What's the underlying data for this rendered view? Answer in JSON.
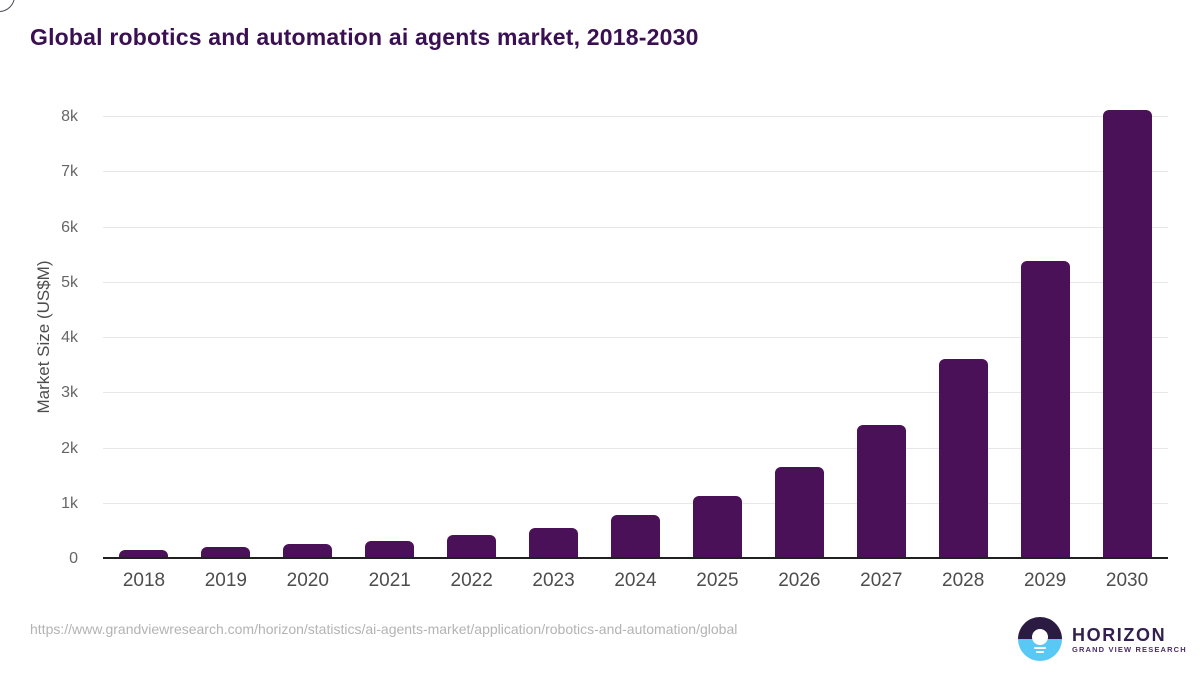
{
  "page": {
    "title": "Global robotics and automation ai agents market, 2018-2030",
    "source_url": "https://www.grandviewresearch.com/horizon/statistics/ai-agents-market/application/robotics-and-automation/global"
  },
  "logo": {
    "name": "HORIZON",
    "subtitle": "GRAND VIEW RESEARCH"
  },
  "colors": {
    "bar": "#4a1158",
    "title": "#3b1053",
    "axis": "#202020",
    "gridline": "#e7e7e7",
    "tick_label": "#666666",
    "logo_dark": "#2b1b43",
    "logo_blue": "#5ac8f5"
  },
  "chart_data": {
    "type": "bar",
    "title": "Global robotics and automation ai agents market, 2018-2030",
    "xlabel": "",
    "ylabel": "Market Size (US$M)",
    "categories": [
      "2018",
      "2019",
      "2020",
      "2021",
      "2022",
      "2023",
      "2024",
      "2025",
      "2026",
      "2027",
      "2028",
      "2029",
      "2030"
    ],
    "values": [
      170,
      210,
      265,
      335,
      430,
      565,
      795,
      1140,
      1660,
      2430,
      3620,
      5390,
      8120
    ],
    "ylim": [
      0,
      8000
    ],
    "ytick_values": [
      0,
      1000,
      2000,
      3000,
      4000,
      5000,
      6000,
      7000,
      8000
    ],
    "ytick_labels": [
      "0",
      "1k",
      "2k",
      "3k",
      "4k",
      "5k",
      "6k",
      "7k",
      "8k"
    ],
    "grid": true,
    "legend_position": "none",
    "bar_color": "#4a1158"
  }
}
